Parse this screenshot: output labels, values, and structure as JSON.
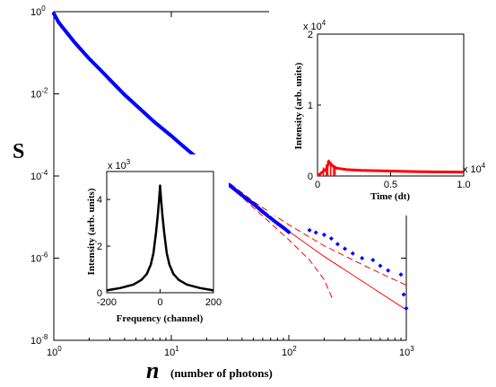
{
  "chart_data": [
    {
      "type": "scatter",
      "name_on_chart": "",
      "xlabel_symbol": "n",
      "xlabel_text": "(number of photons)",
      "ylabel": "S",
      "xscale": "log",
      "yscale": "log",
      "xlim": [
        1,
        1000
      ],
      "ylim": [
        1e-08,
        1
      ],
      "x_ticks": [
        {
          "value": 1,
          "base": "10",
          "exp": "0"
        },
        {
          "value": 10,
          "base": "10",
          "exp": "1"
        },
        {
          "value": 100,
          "base": "10",
          "exp": "2"
        },
        {
          "value": 1000,
          "base": "10",
          "exp": "3"
        }
      ],
      "y_ticks": [
        {
          "value": 1,
          "base": "10",
          "exp": "0"
        },
        {
          "value": 0.01,
          "base": "10",
          "exp": "-2"
        },
        {
          "value": 0.0001,
          "base": "10",
          "exp": "-4"
        },
        {
          "value": 1e-06,
          "base": "10",
          "exp": "-6"
        },
        {
          "value": 1e-08,
          "base": "10",
          "exp": "-8"
        }
      ],
      "series": [
        {
          "kind": "markers",
          "color": "#0000ff",
          "points": [
            [
              1,
              0.9
            ],
            [
              1.05,
              0.7
            ],
            [
              1.1,
              0.55
            ],
            [
              1.2,
              0.4
            ],
            [
              1.3,
              0.3
            ],
            [
              1.5,
              0.18
            ],
            [
              1.7,
              0.12
            ],
            [
              2,
              0.072
            ],
            [
              2.5,
              0.038
            ],
            [
              3,
              0.022
            ],
            [
              3.5,
              0.014
            ],
            [
              4,
              0.0095
            ],
            [
              5,
              0.0053
            ],
            [
              6,
              0.0033
            ],
            [
              7,
              0.0022
            ],
            [
              8,
              0.0016
            ],
            [
              10,
              0.00095
            ],
            [
              12,
              0.0006
            ],
            [
              15,
              0.00035
            ],
            [
              20,
              0.00018
            ],
            [
              25,
              0.000105
            ],
            [
              30,
              6.5e-05
            ],
            [
              35,
              4.6e-05
            ],
            [
              40,
              3.4e-05
            ],
            [
              50,
              2.1e-05
            ],
            [
              60,
              1.35e-05
            ],
            [
              70,
              9.5e-06
            ],
            [
              80,
              7e-06
            ],
            [
              90,
              5.5e-06
            ],
            [
              100,
              4.3e-06
            ],
            [
              150,
              4.8e-06
            ],
            [
              170,
              4.2e-06
            ],
            [
              200,
              3.7e-06
            ],
            [
              230,
              3e-06
            ],
            [
              260,
              2.2e-06
            ],
            [
              300,
              1.7e-06
            ],
            [
              350,
              1.3e-06
            ],
            [
              420,
              1e-06
            ],
            [
              520,
              9e-07
            ],
            [
              600,
              6.5e-07
            ],
            [
              700,
              5e-07
            ],
            [
              900,
              4e-07
            ],
            [
              950,
              1.3e-07
            ],
            [
              1000,
              6e-08
            ]
          ]
        },
        {
          "kind": "line",
          "color": "#ff0000",
          "dash": "solid",
          "points": [
            [
              20,
              0.00018
            ],
            [
              50,
              2.1e-05
            ],
            [
              100,
              4.5e-06
            ],
            [
              200,
              1.1e-06
            ],
            [
              500,
              2e-07
            ],
            [
              1000,
              5.5e-08
            ]
          ]
        },
        {
          "kind": "line",
          "color": "#ff0000",
          "dash": "dashed",
          "points": [
            [
              20,
              0.00018
            ],
            [
              50,
              2.4e-05
            ],
            [
              100,
              6.5e-06
            ],
            [
              200,
              2e-06
            ],
            [
              500,
              5.5e-07
            ],
            [
              1000,
              2.2e-07
            ]
          ]
        },
        {
          "kind": "line",
          "color": "#ff0000",
          "dash": "dashed",
          "points": [
            [
              20,
              0.00018
            ],
            [
              50,
              1.7e-05
            ],
            [
              100,
              2.8e-06
            ],
            [
              150,
              9e-07
            ],
            [
              200,
              3e-07
            ],
            [
              240,
              9e-08
            ]
          ]
        }
      ]
    },
    {
      "type": "line",
      "xlabel": "Time (dt)",
      "ylabel": "Intensity (arb. units)",
      "x_multiplier": "x 10",
      "x_multiplier_exp": "4",
      "y_multiplier": "x 10",
      "y_multiplier_exp": "4",
      "xlim": [
        0,
        1.0
      ],
      "ylim": [
        0,
        2
      ],
      "x_ticks": [
        "0",
        "0.5",
        "1.0"
      ],
      "y_ticks": [
        "0",
        "1",
        "2"
      ],
      "series": [
        {
          "color": "#ff0000",
          "points": [
            [
              0,
              0
            ],
            [
              0.03,
              0.05
            ],
            [
              0.06,
              0.1
            ],
            [
              0.08,
              0.2
            ],
            [
              0.1,
              0.15
            ],
            [
              0.13,
              0.11
            ],
            [
              0.2,
              0.09
            ],
            [
              0.3,
              0.08
            ],
            [
              0.5,
              0.07
            ],
            [
              0.7,
              0.06
            ],
            [
              1.0,
              0.055
            ]
          ]
        }
      ]
    },
    {
      "type": "line",
      "xlabel": "Frequency (channel)",
      "ylabel": "Intensity (arb. units)",
      "y_multiplier": "x 10",
      "y_multiplier_exp": "3",
      "xlim": [
        -200,
        200
      ],
      "ylim": [
        0,
        5.2
      ],
      "x_ticks": [
        "-200",
        "0",
        "200"
      ],
      "y_ticks": [
        "0",
        "2",
        "4"
      ],
      "series": [
        {
          "color": "#000000",
          "points": [
            [
              -200,
              0.1
            ],
            [
              -150,
              0.2
            ],
            [
              -100,
              0.35
            ],
            [
              -70,
              0.55
            ],
            [
              -50,
              0.8
            ],
            [
              -35,
              1.2
            ],
            [
              -25,
              1.7
            ],
            [
              -15,
              2.6
            ],
            [
              -8,
              3.4
            ],
            [
              -3,
              4.1
            ],
            [
              0,
              4.6
            ],
            [
              3,
              4.1
            ],
            [
              8,
              3.4
            ],
            [
              15,
              2.6
            ],
            [
              25,
              1.7
            ],
            [
              35,
              1.2
            ],
            [
              50,
              0.8
            ],
            [
              70,
              0.55
            ],
            [
              100,
              0.35
            ],
            [
              150,
              0.2
            ],
            [
              200,
              0.1
            ]
          ]
        }
      ]
    }
  ]
}
